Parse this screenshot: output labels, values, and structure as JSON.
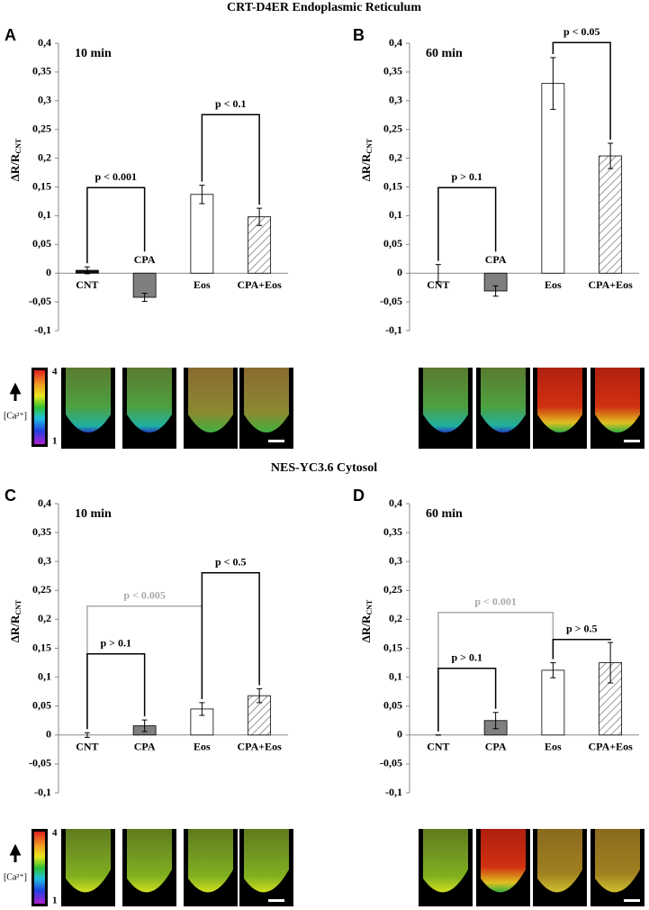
{
  "sections": [
    "CRT-D4ER Endoplasmic Reticulum",
    "NES-YC3.6 Cytosol"
  ],
  "colorbar": {
    "max_label": "4",
    "min_label": "1",
    "label": "[Ca²⁺]"
  },
  "chart_data": [
    {
      "type": "bar",
      "letter": "A",
      "subtitle": "10 min",
      "y_label": "ΔR/R",
      "y_label_sub": "CNT",
      "categories": [
        "CNT",
        "CPA",
        "Eos",
        "CPA+Eos"
      ],
      "values": [
        0.005,
        -0.042,
        0.137,
        0.098
      ],
      "errors": [
        0.006,
        0.007,
        0.016,
        0.015
      ],
      "colors": [
        "#111111",
        "#7f7f7f",
        "#ffffff",
        "#ffffff"
      ],
      "hatch": [
        false,
        false,
        false,
        true
      ],
      "ylim": [
        -0.1,
        0.4
      ],
      "yticks": [
        {
          "value": 0.4,
          "label": "0,4"
        },
        {
          "value": 0.35,
          "label": "0,35"
        },
        {
          "value": 0.3,
          "label": "0,3"
        },
        {
          "value": 0.25,
          "label": "0,25"
        },
        {
          "value": 0.2,
          "label": "0,2"
        },
        {
          "value": 0.15,
          "label": "0,15"
        },
        {
          "value": 0.1,
          "label": "0,1"
        },
        {
          "value": 0.05,
          "label": "0,05"
        },
        0,
        {
          "value": -0.05,
          "label": "-0,05"
        },
        {
          "value": -0.1,
          "label": "-0,1"
        }
      ],
      "brackets": [
        {
          "label": "p < 0.001",
          "from": "CNT",
          "to": "CPA",
          "color": "#000000"
        },
        {
          "label": "p < 0.1",
          "from": "Eos",
          "to": "CPA+Eos",
          "color": "#000000"
        }
      ]
    },
    {
      "type": "bar",
      "letter": "B",
      "subtitle": "60 min",
      "y_label": "ΔR/R",
      "y_label_sub": "CNT",
      "categories": [
        "CNT",
        "CPA",
        "Eos",
        "CPA+Eos"
      ],
      "values": [
        0.0,
        -0.031,
        0.33,
        0.204
      ],
      "errors": [
        0.015,
        0.009,
        0.045,
        0.022
      ],
      "colors": [
        "#111111",
        "#7f7f7f",
        "#ffffff",
        "#ffffff"
      ],
      "hatch": [
        false,
        false,
        false,
        true
      ],
      "ylim": [
        -0.1,
        0.4
      ],
      "yticks": [
        {
          "value": 0.4,
          "label": "0,4"
        },
        {
          "value": 0.35,
          "label": "0,35"
        },
        {
          "value": 0.3,
          "label": "0,3"
        },
        {
          "value": 0.25,
          "label": "0,25"
        },
        {
          "value": 0.2,
          "label": "0,2"
        },
        {
          "value": 0.15,
          "label": "0,15"
        },
        {
          "value": 0.1,
          "label": "0,1"
        },
        {
          "value": 0.05,
          "label": "0,05"
        },
        0,
        {
          "value": -0.05,
          "label": "-0,05"
        },
        {
          "value": -0.1,
          "label": "-0,1"
        }
      ],
      "brackets": [
        {
          "label": "p > 0.1",
          "from": "CNT",
          "to": "CPA",
          "color": "#000000"
        },
        {
          "label": "p < 0.05",
          "from": "Eos",
          "to": "CPA+Eos",
          "color": "#000000"
        }
      ]
    },
    {
      "type": "bar",
      "letter": "C",
      "subtitle": "10 min",
      "y_label": "ΔR/R",
      "y_label_sub": "CNT",
      "categories": [
        "CNT",
        "CPA",
        "Eos",
        "CPA+Eos"
      ],
      "values": [
        0.0,
        0.016,
        0.045,
        0.068
      ],
      "errors": [
        0.004,
        0.01,
        0.011,
        0.012
      ],
      "colors": [
        "#111111",
        "#7f7f7f",
        "#ffffff",
        "#ffffff"
      ],
      "hatch": [
        false,
        false,
        false,
        true
      ],
      "ylim": [
        -0.1,
        0.4
      ],
      "yticks": [
        {
          "value": 0.4,
          "label": "0,4"
        },
        {
          "value": 0.35,
          "label": "0,35"
        },
        {
          "value": 0.3,
          "label": "0,3"
        },
        {
          "value": 0.25,
          "label": "0,25"
        },
        {
          "value": 0.2,
          "label": "0,2"
        },
        {
          "value": 0.15,
          "label": "0,15"
        },
        {
          "value": 0.1,
          "label": "0,1"
        },
        {
          "value": 0.05,
          "label": "0,05"
        },
        0,
        {
          "value": -0.05,
          "label": "-0,05"
        },
        {
          "value": -0.1,
          "label": "-0,1"
        }
      ],
      "brackets": [
        {
          "label": "p < 0.005",
          "from": "CNT",
          "to": "Eos",
          "color": "#aaaaaa"
        },
        {
          "label": "p > 0.1",
          "from": "CNT",
          "to": "CPA",
          "color": "#000000"
        },
        {
          "label": "p < 0.5",
          "from": "Eos",
          "to": "CPA+Eos",
          "color": "#000000"
        }
      ]
    },
    {
      "type": "bar",
      "letter": "D",
      "subtitle": "60 min",
      "y_label": "ΔR/R",
      "y_label_sub": "CNT",
      "categories": [
        "CNT",
        "CPA",
        "Eos",
        "CPA+Eos"
      ],
      "values": [
        0.0,
        0.025,
        0.112,
        0.125
      ],
      "errors": [
        0.0,
        0.014,
        0.013,
        0.035
      ],
      "colors": [
        "#111111",
        "#7f7f7f",
        "#ffffff",
        "#ffffff"
      ],
      "hatch": [
        false,
        false,
        false,
        true
      ],
      "ylim": [
        -0.1,
        0.4
      ],
      "yticks": [
        {
          "value": 0.4,
          "label": "0,4"
        },
        {
          "value": 0.35,
          "label": "0,35"
        },
        {
          "value": 0.3,
          "label": "0,3"
        },
        {
          "value": 0.25,
          "label": "0,25"
        },
        {
          "value": 0.2,
          "label": "0,2"
        },
        {
          "value": 0.15,
          "label": "0,15"
        },
        {
          "value": 0.1,
          "label": "0,1"
        },
        {
          "value": 0.05,
          "label": "0,05"
        },
        0,
        {
          "value": -0.05,
          "label": "-0,05"
        },
        {
          "value": -0.1,
          "label": "-0,1"
        }
      ],
      "brackets": [
        {
          "label": "p < 0.001",
          "from": "CNT",
          "to": "Eos",
          "color": "#aaaaaa"
        },
        {
          "label": "p > 0.1",
          "from": "CNT",
          "to": "CPA",
          "color": "#000000"
        },
        {
          "label": "p > 0.5",
          "from": "Eos",
          "to": "CPA+Eos",
          "color": "#000000"
        }
      ]
    }
  ]
}
